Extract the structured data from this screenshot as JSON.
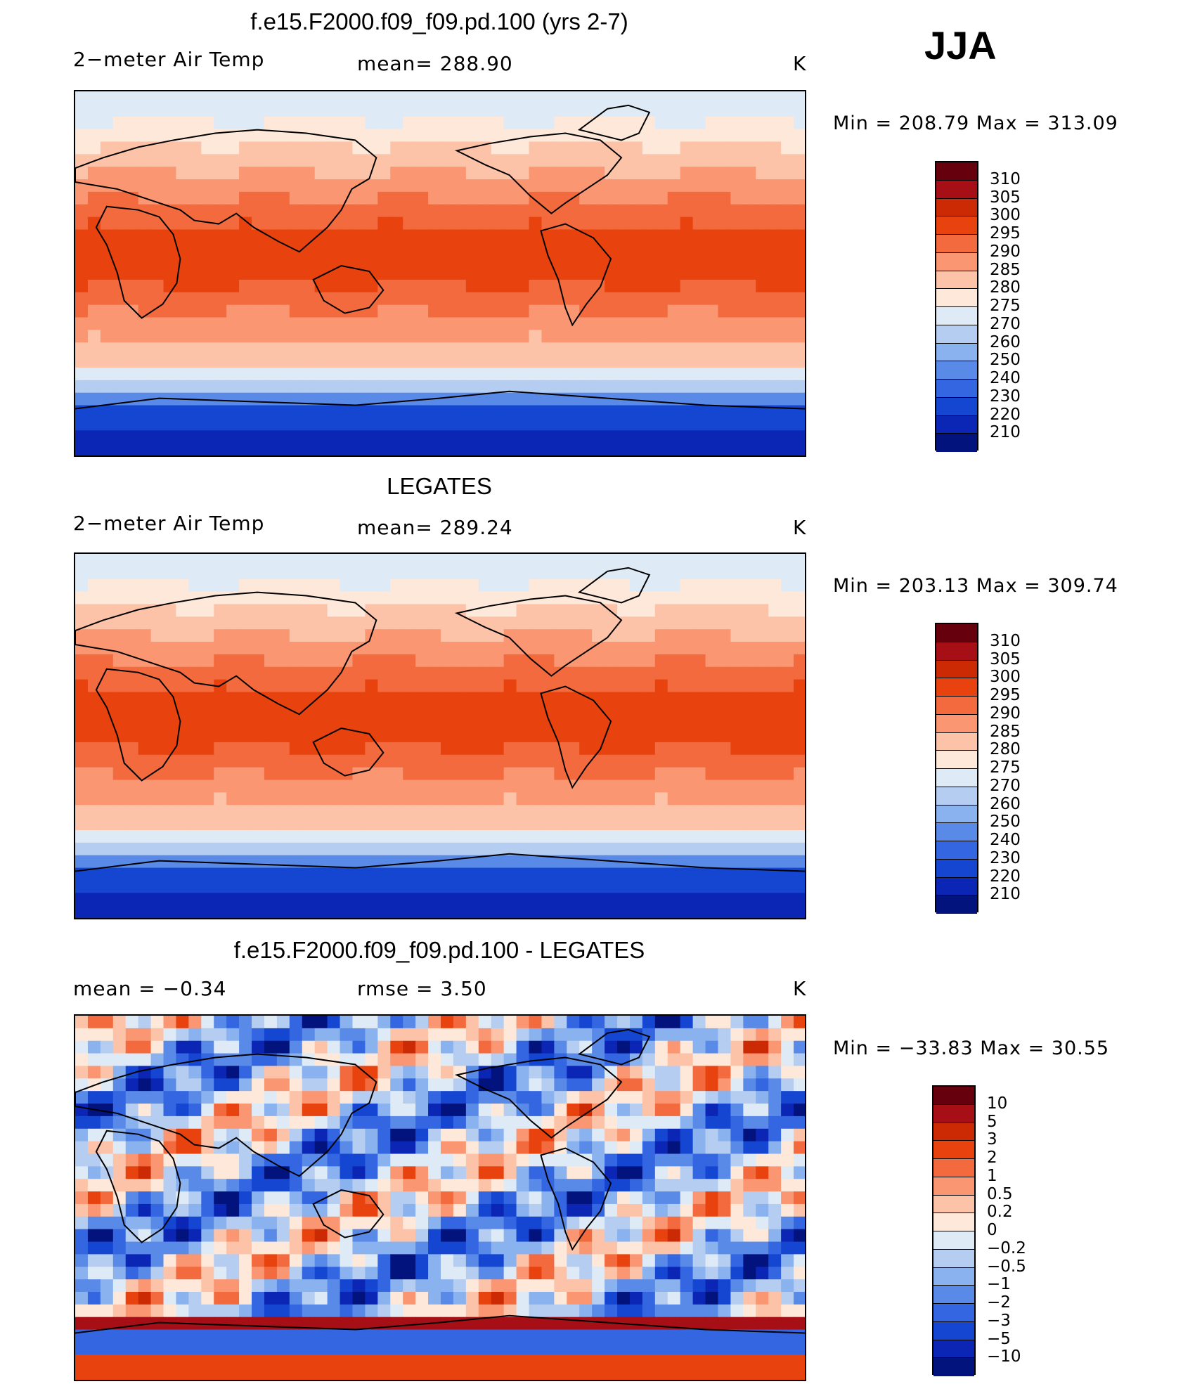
{
  "season": "JJA",
  "panels": [
    {
      "title": "f.e15.F2000.f09_f09.pd.100 (yrs 2-7)",
      "left_label": "2−meter Air Temp",
      "center_label": "mean=  288.90",
      "units": "K",
      "minmax": "Min  =  208.79  Max  =  313.09",
      "colorbar_labels": [
        "310",
        "305",
        "300",
        "295",
        "290",
        "285",
        "280",
        "275",
        "270",
        "260",
        "250",
        "240",
        "230",
        "220",
        "210"
      ],
      "colorbar_colors": [
        "#67000d",
        "#a50f15",
        "#cb2a05",
        "#e8420e",
        "#f26a3d",
        "#fa9672",
        "#fcc3a8",
        "#fee8d9",
        "#deebf7",
        "#b5cdf0",
        "#8ab2ee",
        "#5a8ae8",
        "#3366e0",
        "#1546d2",
        "#0b26b4",
        "#03137e"
      ],
      "map_field": "abs"
    },
    {
      "title": "LEGATES",
      "left_label": "2−meter Air Temp",
      "center_label": "mean=  289.24",
      "units": "K",
      "minmax": "Min  =  203.13  Max  =  309.74",
      "colorbar_labels": [
        "310",
        "305",
        "300",
        "295",
        "290",
        "285",
        "280",
        "275",
        "270",
        "260",
        "250",
        "240",
        "230",
        "220",
        "210"
      ],
      "colorbar_colors": [
        "#67000d",
        "#a50f15",
        "#cb2a05",
        "#e8420e",
        "#f26a3d",
        "#fa9672",
        "#fcc3a8",
        "#fee8d9",
        "#deebf7",
        "#b5cdf0",
        "#8ab2ee",
        "#5a8ae8",
        "#3366e0",
        "#1546d2",
        "#0b26b4",
        "#03137e"
      ],
      "map_field": "abs"
    },
    {
      "title": "f.e15.F2000.f09_f09.pd.100 - LEGATES",
      "left_label": "mean =    −0.34",
      "center_label": "rmse =     3.50",
      "units": "K",
      "minmax": "Min  =  −33.83  Max  =    30.55",
      "colorbar_labels": [
        "10",
        "5",
        "3",
        "2",
        "1",
        "0.5",
        "0.2",
        "0",
        "−0.2",
        "−0.5",
        "−1",
        "−2",
        "−3",
        "−5",
        "−10"
      ],
      "colorbar_colors": [
        "#67000d",
        "#a50f15",
        "#cb2a05",
        "#e8420e",
        "#f26a3d",
        "#fa9672",
        "#fcc3a8",
        "#fee8d9",
        "#deebf7",
        "#b5cdf0",
        "#8ab2ee",
        "#5a8ae8",
        "#3366e0",
        "#1546d2",
        "#0b26b4",
        "#03137e"
      ],
      "map_field": "diff"
    }
  ]
}
